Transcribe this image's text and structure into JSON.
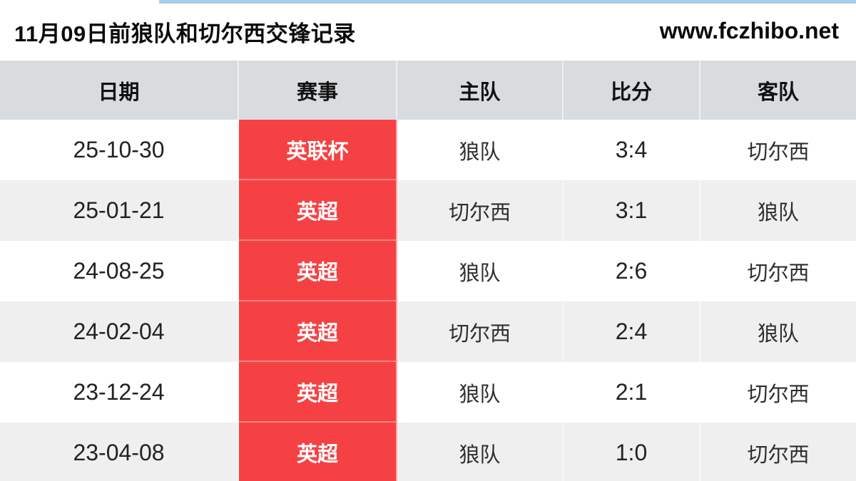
{
  "page": {
    "title": "11月09日前狼队和切尔西交锋记录",
    "site": "www.fczhibo.net"
  },
  "table": {
    "columns": [
      {
        "key": "date",
        "label": "日期"
      },
      {
        "key": "competition",
        "label": "赛事"
      },
      {
        "key": "home",
        "label": "主队"
      },
      {
        "key": "score",
        "label": "比分"
      },
      {
        "key": "away",
        "label": "客队"
      }
    ],
    "rows": [
      {
        "date": "25-10-30",
        "competition": "英联杯",
        "home": "狼队",
        "score": "3:4",
        "away": "切尔西"
      },
      {
        "date": "25-01-21",
        "competition": "英超",
        "home": "切尔西",
        "score": "3:1",
        "away": "狼队"
      },
      {
        "date": "24-08-25",
        "competition": "英超",
        "home": "狼队",
        "score": "2:6",
        "away": "切尔西"
      },
      {
        "date": "24-02-04",
        "competition": "英超",
        "home": "切尔西",
        "score": "2:4",
        "away": "狼队"
      },
      {
        "date": "23-12-24",
        "competition": "英超",
        "home": "狼队",
        "score": "2:1",
        "away": "切尔西"
      },
      {
        "date": "23-04-08",
        "competition": "英超",
        "home": "狼队",
        "score": "1:0",
        "away": "切尔西"
      }
    ]
  },
  "colors": {
    "header_bg": "#d9dcdf",
    "row_alt_bg": "#f0efef",
    "competition_bg": "#f54143",
    "top_accent": "#a9cbee"
  }
}
